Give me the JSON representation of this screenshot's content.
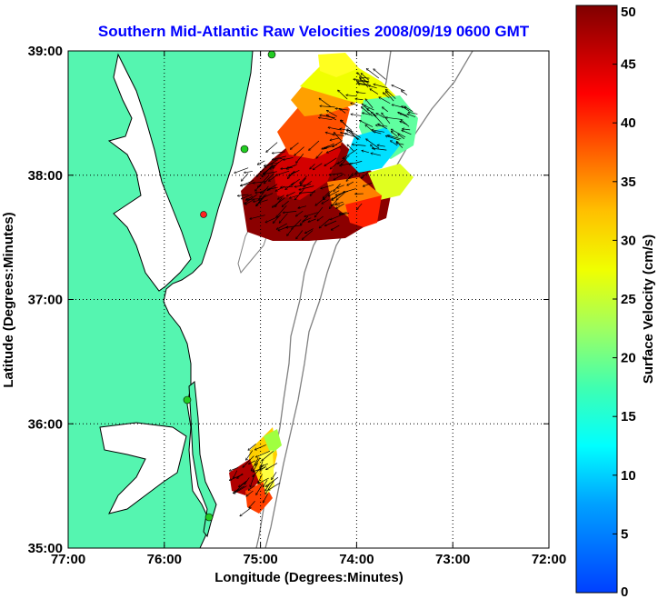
{
  "title": "Southern Mid-Atlantic Raw Velocities 2008/09/19 0600 GMT",
  "colors": {
    "title": "#0000ff",
    "land": "#55f5b0",
    "ocean": "#ffffff",
    "coast": "#000000",
    "isobath": "#808080",
    "site": "#22cc22",
    "site_offline": "#ff2222"
  },
  "map": {
    "xlabel": "Longitude (Degrees:Minutes)",
    "ylabel": "Latitude (Degrees:Minutes)",
    "lon_range": [
      -77,
      -72
    ],
    "lat_range": [
      35,
      39
    ],
    "x_ticks": [
      "77:00",
      "76:00",
      "75:00",
      "74:00",
      "73:00",
      "72:00"
    ],
    "y_ticks": [
      "39:00",
      "38:00",
      "37:00",
      "36:00",
      "35:00"
    ],
    "grid": true
  },
  "colorbar": {
    "label": "Surface Velocity (cm/s)",
    "min": 0,
    "max": 50,
    "ticks": [
      "0",
      "5",
      "10",
      "15",
      "20",
      "25",
      "30",
      "35",
      "40",
      "45",
      "50"
    ]
  }
}
